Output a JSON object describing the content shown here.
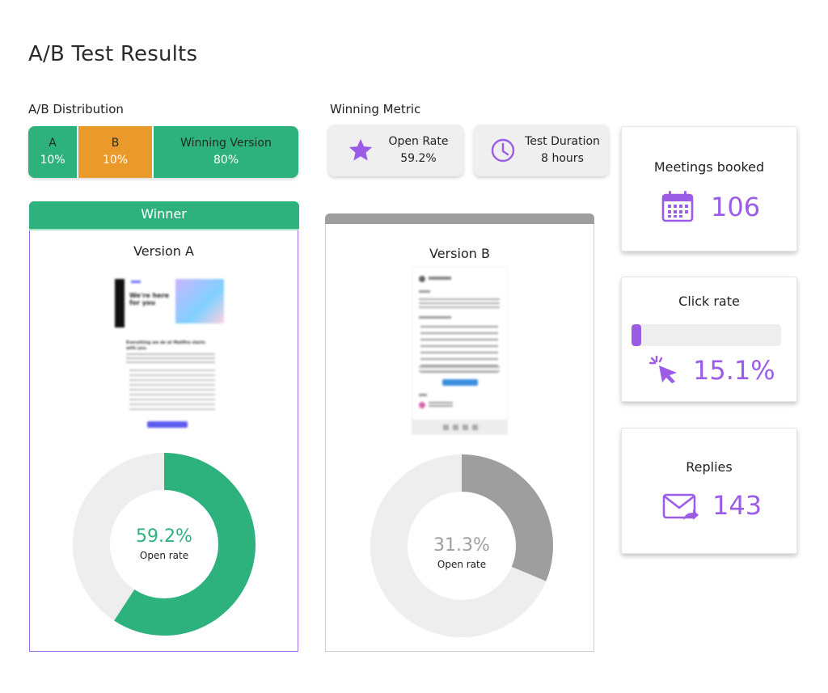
{
  "page": {
    "title": "A/B Test Results"
  },
  "distribution": {
    "label": "A/B Distribution",
    "segments": [
      {
        "name": "A",
        "percent": "10%",
        "color": "#2db27d"
      },
      {
        "name": "B",
        "percent": "10%",
        "color": "#ea9a2a"
      },
      {
        "name": "Winning Version",
        "percent": "80%",
        "color": "#2db27d"
      }
    ]
  },
  "winning_metric": {
    "label": "Winning Metric",
    "open_rate": {
      "label": "Open Rate",
      "value": "59.2%",
      "icon": "star-icon"
    },
    "duration": {
      "label": "Test Duration",
      "value": "8 hours",
      "icon": "clock-icon"
    }
  },
  "stats": {
    "meetings": {
      "title": "Meetings booked",
      "value": "106",
      "icon": "calendar-icon"
    },
    "click_rate": {
      "title": "Click rate",
      "value": "15.1%",
      "icon": "cursor-click-icon",
      "progress": 0.151
    },
    "replies": {
      "title": "Replies",
      "value": "143",
      "icon": "mail-reply-icon"
    }
  },
  "versions": {
    "a": {
      "badge": "Winner",
      "title": "Version A",
      "open_rate": 59.2,
      "open_rate_label": "59.2%",
      "metric_caption": "Open rate",
      "color": "#2db27d",
      "email_preview": {
        "hero_text": "We're here for you",
        "heading": "Everything we do at Mailfire starts with you."
      }
    },
    "b": {
      "title": "Version B",
      "open_rate": 31.3,
      "open_rate_label": "31.3%",
      "metric_caption": "Open rate",
      "color": "#9e9e9e"
    }
  },
  "colors": {
    "accent": "#9b5de5",
    "green": "#2db27d",
    "orange": "#ea9a2a",
    "gray": "#9e9e9e",
    "track": "#eeeeee"
  }
}
